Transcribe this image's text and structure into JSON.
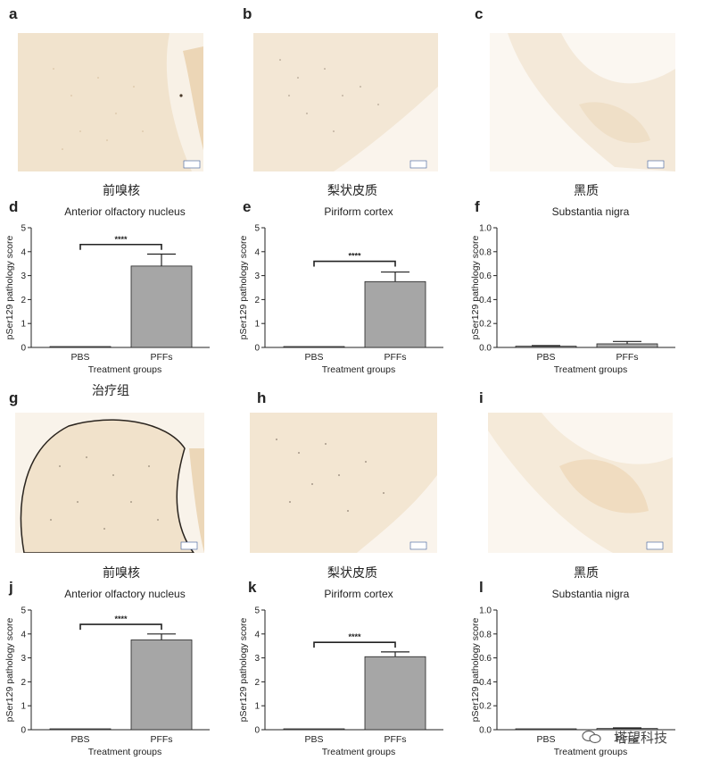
{
  "panels": {
    "a": "a",
    "b": "b",
    "c": "c",
    "d": "d",
    "e": "e",
    "f": "f",
    "g": "g",
    "h": "h",
    "i": "i",
    "j": "j",
    "k": "k",
    "l": "l"
  },
  "row_titles": {
    "top_left": "前嗅核",
    "top_mid": "梨状皮质",
    "top_right": "黑质",
    "bot_left": "前嗅核",
    "bot_mid": "梨状皮质",
    "bot_right": "黑质"
  },
  "section_note": "治疗组",
  "watermark": "塔望科技",
  "colors": {
    "bar": "#a6a6a6",
    "tissue": "#f3e6d3",
    "bg": "#faf6f0"
  },
  "chart_data": [
    {
      "id": "d",
      "type": "bar",
      "title": "Anterior olfactory nucleus",
      "xlabel": "Treatment groups",
      "ylabel": "pSer129 pathology score",
      "categories": [
        "PBS",
        "PFFs"
      ],
      "values": [
        0.02,
        3.4
      ],
      "errors": [
        0,
        0.5
      ],
      "ylim": [
        0,
        5
      ],
      "yticks": [
        "0",
        "1",
        "2",
        "3",
        "4",
        "5"
      ],
      "significance": "****",
      "sig_y": 4.3
    },
    {
      "id": "e",
      "type": "bar",
      "title": "Piriform cortex",
      "xlabel": "Treatment groups",
      "ylabel": "pSer129 pathology score",
      "categories": [
        "PBS",
        "PFFs"
      ],
      "values": [
        0.0,
        2.75
      ],
      "errors": [
        0,
        0.4
      ],
      "ylim": [
        0,
        5
      ],
      "yticks": [
        "0",
        "1",
        "2",
        "3",
        "4",
        "5"
      ],
      "significance": "****",
      "sig_y": 3.6
    },
    {
      "id": "f",
      "type": "bar",
      "title": "Substantia nigra",
      "xlabel": "Treatment groups",
      "ylabel": "pSer129 pathology score",
      "categories": [
        "PBS",
        "PFFs"
      ],
      "values": [
        0.01,
        0.03
      ],
      "errors": [
        0.005,
        0.02
      ],
      "ylim": [
        0,
        1.0
      ],
      "yticks": [
        "0.0",
        "0.2",
        "0.4",
        "0.6",
        "0.8",
        "1.0"
      ],
      "significance": "",
      "sig_y": 0
    },
    {
      "id": "j",
      "type": "bar",
      "title": "Anterior olfactory nucleus",
      "xlabel": "Treatment groups",
      "ylabel": "pSer129 pathology score",
      "categories": [
        "PBS",
        "PFFs"
      ],
      "values": [
        0.02,
        3.75
      ],
      "errors": [
        0,
        0.25
      ],
      "ylim": [
        0,
        5
      ],
      "yticks": [
        "0",
        "1",
        "2",
        "3",
        "4",
        "5"
      ],
      "significance": "****",
      "sig_y": 4.4
    },
    {
      "id": "k",
      "type": "bar",
      "title": "Piriform cortex",
      "xlabel": "Treatment groups",
      "ylabel": "pSer129 pathology score",
      "categories": [
        "PBS",
        "PFFs"
      ],
      "values": [
        0.0,
        3.05
      ],
      "errors": [
        0,
        0.2
      ],
      "ylim": [
        0,
        5
      ],
      "yticks": [
        "0",
        "1",
        "2",
        "3",
        "4",
        "5"
      ],
      "significance": "****",
      "sig_y": 3.65
    },
    {
      "id": "l",
      "type": "bar",
      "title": "Substantia nigra",
      "xlabel": "Treatment groups",
      "ylabel": "pSer129 pathology score",
      "categories": [
        "PBS",
        "PFFs"
      ],
      "values": [
        0.0,
        0.01
      ],
      "errors": [
        0,
        0.005
      ],
      "ylim": [
        0,
        1.0
      ],
      "yticks": [
        "0.0",
        "0.2",
        "0.4",
        "0.6",
        "0.8",
        "1.0"
      ],
      "significance": "",
      "sig_y": 0
    }
  ]
}
